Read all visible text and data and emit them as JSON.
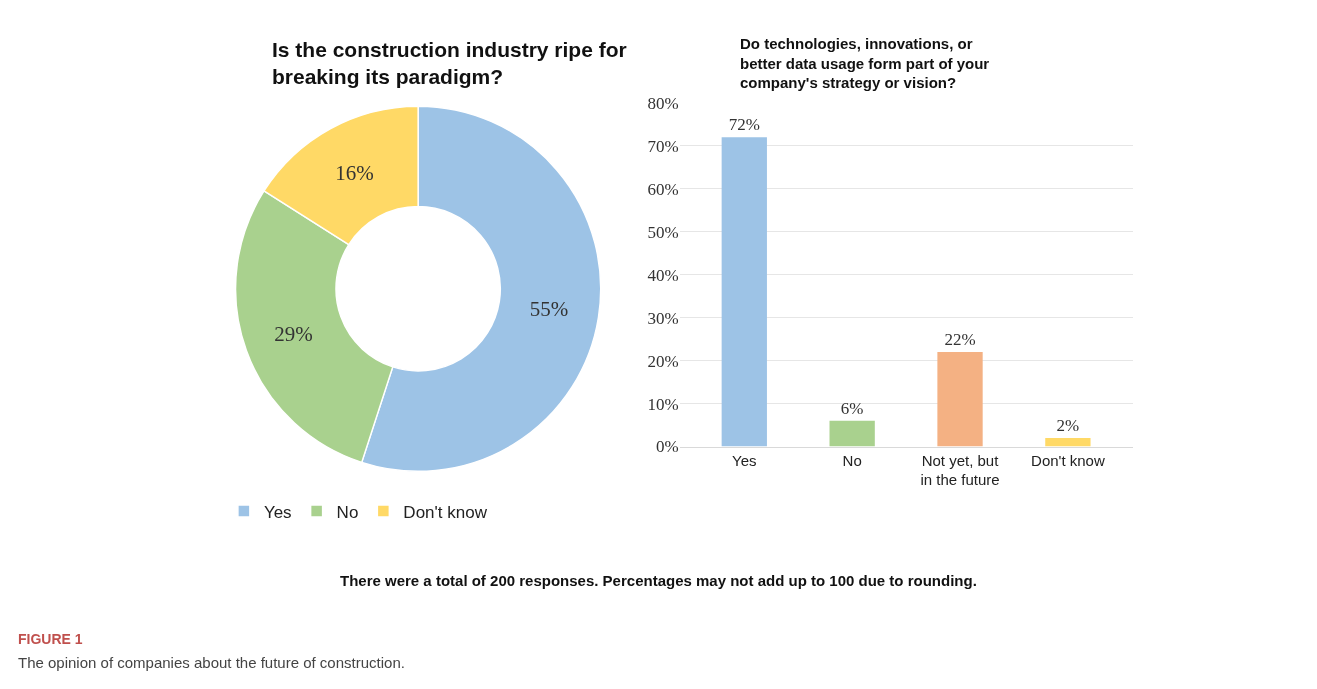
{
  "chart_data": [
    {
      "type": "donut",
      "title": "Is the construction industry ripe for breaking its paradigm?",
      "categories": [
        "Yes",
        "No",
        "Don't know"
      ],
      "values": [
        55,
        29,
        16
      ],
      "colors": [
        "#9dc3e6",
        "#a9d18e",
        "#ffd966"
      ],
      "value_labels": [
        "55%",
        "29%",
        "16%"
      ],
      "legend": "bottom",
      "annotations": [
        "There were a total of 200 responses. Percentages may not add up to 100 due to rounding.",
        "FIGURE 1",
        "The opinion of companies about the future of construction."
      ]
    },
    {
      "type": "bar",
      "title": "Do technologies, innovations, or better data usage form part of your company's strategy or vision?",
      "categories": [
        "Yes",
        "No",
        "Not yet, but in the future",
        "Don't know"
      ],
      "values": [
        72,
        6,
        22,
        2
      ],
      "colors": [
        "#9dc3e6",
        "#a9d18e",
        "#f4b183",
        "#ffd966"
      ],
      "value_labels": [
        "72%",
        "6%",
        "22%",
        "2%"
      ],
      "ylim": [
        0,
        80
      ],
      "yticks": [
        {
          "value": 0,
          "label": "0%"
        },
        {
          "value": 10,
          "label": "10%"
        },
        {
          "value": 20,
          "label": "20%"
        },
        {
          "value": 30,
          "label": "30%"
        },
        {
          "value": 40,
          "label": "40%"
        },
        {
          "value": 50,
          "label": "50%"
        },
        {
          "value": 60,
          "label": "60%"
        },
        {
          "value": 70,
          "label": "70%"
        },
        {
          "value": 80,
          "label": "80%"
        }
      ],
      "grid": "y"
    }
  ]
}
